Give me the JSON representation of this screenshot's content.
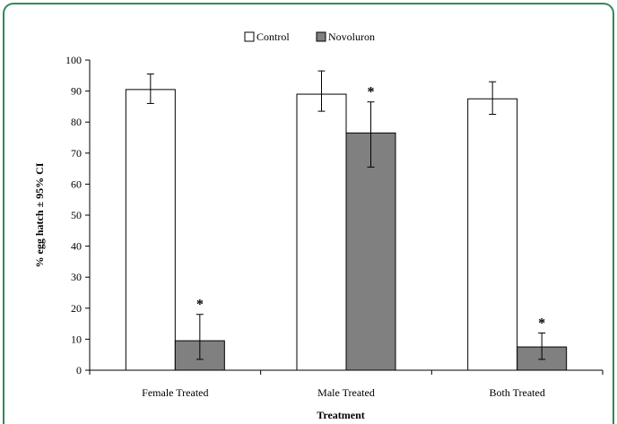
{
  "chart_data": {
    "type": "bar",
    "title": "",
    "xlabel": "Treatment",
    "ylabel": "% egg hatch  ± 95% CI",
    "ylim": [
      0,
      100
    ],
    "yticks": [
      0,
      10,
      20,
      30,
      40,
      50,
      60,
      70,
      80,
      90,
      100
    ],
    "categories": [
      "Female Treated",
      "Male Treated",
      "Both Treated"
    ],
    "grid": false,
    "legend_position": "top-center",
    "series": [
      {
        "name": "Control",
        "color": "#ffffff",
        "values": [
          90.5,
          89,
          87.5
        ],
        "ci_low": [
          86,
          83.5,
          82.5
        ],
        "ci_high": [
          95.5,
          96.5,
          93
        ],
        "markers": [
          "",
          "",
          ""
        ]
      },
      {
        "name": "Novoluron",
        "color": "#808080",
        "values": [
          9.5,
          76.5,
          7.5
        ],
        "ci_low": [
          3.5,
          65.5,
          3.5
        ],
        "ci_high": [
          18,
          86.5,
          12
        ],
        "markers": [
          "*",
          "*",
          "*"
        ]
      }
    ]
  }
}
